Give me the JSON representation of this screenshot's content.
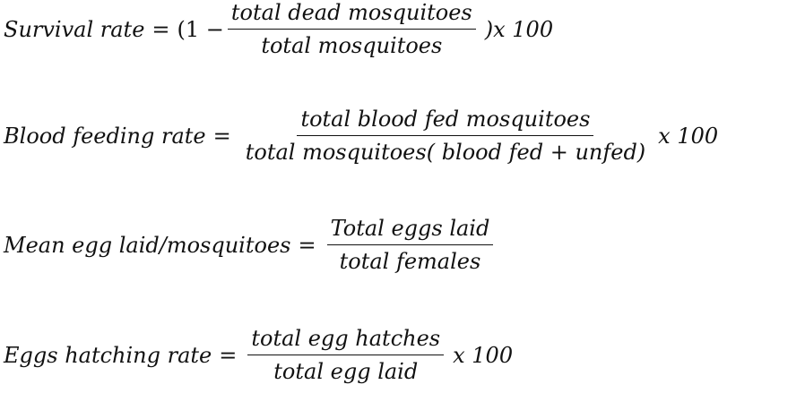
{
  "equations": [
    {
      "lhs": "Survival rate",
      "equals": "=",
      "prefix": "(1 −",
      "numerator": "total dead mosquitoes",
      "denominator": "total mosquitoes",
      "suffix": ")x 100"
    },
    {
      "lhs": "Blood feeding rate",
      "equals": "=",
      "numerator": "total blood fed mosquitoes",
      "denominator": "total mosquitoes( blood fed + unfed)",
      "suffix": "x 100"
    },
    {
      "lhs": "Mean egg laid/mosquitoes",
      "equals": "=",
      "numerator": "Total eggs laid",
      "denominator": "total females"
    },
    {
      "lhs": "Eggs hatching rate",
      "equals": "=",
      "numerator": "total egg hatches",
      "denominator": "total egg laid",
      "suffix": "x 100"
    }
  ]
}
